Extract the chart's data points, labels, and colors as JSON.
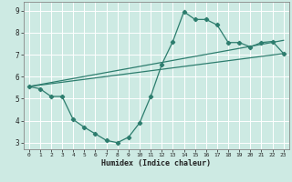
{
  "xlabel": "Humidex (Indice chaleur)",
  "xlim": [
    -0.5,
    23.5
  ],
  "ylim": [
    2.7,
    9.4
  ],
  "xticks": [
    0,
    1,
    2,
    3,
    4,
    5,
    6,
    7,
    8,
    9,
    10,
    11,
    12,
    13,
    14,
    15,
    16,
    17,
    18,
    19,
    20,
    21,
    22,
    23
  ],
  "yticks": [
    3,
    4,
    5,
    6,
    7,
    8,
    9
  ],
  "bg_color": "#cdeae3",
  "line_color": "#2d7d6e",
  "line1_x": [
    0,
    1,
    2,
    3,
    4,
    5,
    6,
    7,
    8,
    9,
    10,
    11,
    12,
    13,
    14,
    15,
    16,
    17,
    18,
    19,
    20,
    21,
    22,
    23
  ],
  "line1_y": [
    5.55,
    5.45,
    5.1,
    5.1,
    4.05,
    3.7,
    3.4,
    3.1,
    3.0,
    3.25,
    3.9,
    5.1,
    6.55,
    7.6,
    8.95,
    8.6,
    8.6,
    8.35,
    7.55,
    7.55,
    7.35,
    7.55,
    7.6,
    7.05
  ],
  "line2_x": [
    0,
    23
  ],
  "line2_y": [
    5.55,
    7.65
  ],
  "line3_x": [
    0,
    23
  ],
  "line3_y": [
    5.55,
    7.05
  ],
  "figsize": [
    3.2,
    2.0
  ],
  "dpi": 100
}
